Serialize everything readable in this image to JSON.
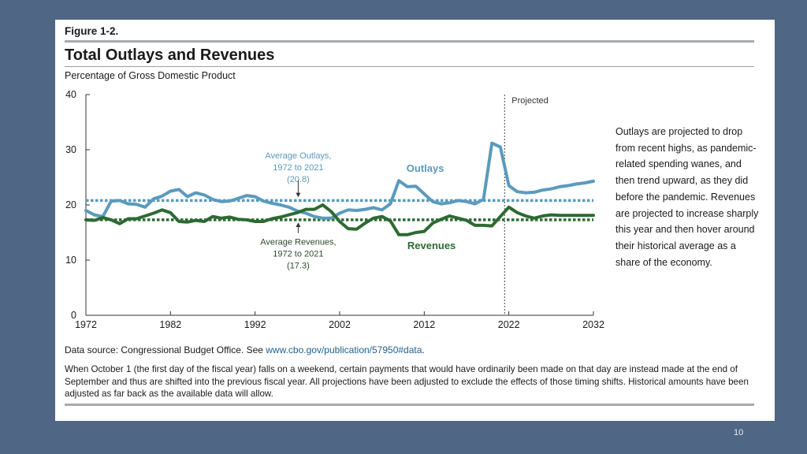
{
  "figure": {
    "number": "Figure 1-2.",
    "title": "Total Outlays and Revenues",
    "subtitle": "Percentage of Gross Domestic Product",
    "note_text": "Outlays are projected to drop from recent highs, as pandemic-related spending wanes, and then trend upward, as they did before the pandemic. Revenues are projected to increase sharply this year and then hover around their historical average as a share of the economy.",
    "source_prefix": "Data source: Congressional Budget Office. See ",
    "source_link": "www.cbo.gov/publication/57950#data",
    "source_suffix": ".",
    "footnote": "When October 1 (the first day of the fiscal year) falls on a weekend, certain payments that would have ordinarily been made on that day are instead made at the end of September and thus are shifted into the previous fiscal year. All projections have been adjusted to exclude the effects of those timing shifts. Historical amounts have been adjusted as far back as the available data will allow."
  },
  "page_number": "10",
  "colors": {
    "outlays": "#5b9abd",
    "revenues": "#2d6a33",
    "axis": "#333333",
    "card": "#ffffff",
    "background": "#4f6685"
  },
  "chart_data": {
    "type": "line",
    "title": "Total Outlays and Revenues",
    "ylabel": "Percentage of Gross Domestic Product",
    "xlabel": "",
    "xlim": [
      1972,
      2032
    ],
    "ylim": [
      0,
      40
    ],
    "x_ticks": [
      1972,
      1982,
      1992,
      2002,
      2012,
      2022,
      2032
    ],
    "y_ticks": [
      0,
      10,
      20,
      30,
      40
    ],
    "grid": false,
    "projected_start": 2021.5,
    "projected_label": "Projected",
    "x": [
      1972,
      1973,
      1974,
      1975,
      1976,
      1977,
      1978,
      1979,
      1980,
      1981,
      1982,
      1983,
      1984,
      1985,
      1986,
      1987,
      1988,
      1989,
      1990,
      1991,
      1992,
      1993,
      1994,
      1995,
      1996,
      1997,
      1998,
      1999,
      2000,
      2001,
      2002,
      2003,
      2004,
      2005,
      2006,
      2007,
      2008,
      2009,
      2010,
      2011,
      2012,
      2013,
      2014,
      2015,
      2016,
      2017,
      2018,
      2019,
      2020,
      2021,
      2022,
      2023,
      2024,
      2025,
      2026,
      2027,
      2028,
      2029,
      2030,
      2031,
      2032
    ],
    "series": [
      {
        "name": "Outlays",
        "label": "Outlays",
        "values": [
          19.0,
          18.2,
          17.9,
          20.7,
          20.8,
          20.2,
          20.1,
          19.6,
          21.1,
          21.6,
          22.5,
          22.8,
          21.5,
          22.2,
          21.8,
          21.0,
          20.6,
          20.7,
          21.2,
          21.7,
          21.5,
          20.7,
          20.3,
          20.0,
          19.6,
          18.9,
          18.5,
          17.9,
          17.6,
          17.6,
          18.5,
          19.1,
          19.0,
          19.2,
          19.5,
          19.1,
          20.2,
          24.4,
          23.3,
          23.4,
          22.0,
          20.6,
          20.2,
          20.4,
          20.8,
          20.6,
          20.2,
          21.0,
          31.2,
          30.5,
          23.5,
          22.4,
          22.2,
          22.3,
          22.7,
          22.9,
          23.3,
          23.5,
          23.8,
          24.0,
          24.3
        ]
      },
      {
        "name": "Revenues",
        "label": "Revenues",
        "values": [
          17.3,
          17.2,
          17.7,
          17.3,
          16.6,
          17.5,
          17.5,
          18.0,
          18.5,
          19.1,
          18.6,
          17.0,
          16.9,
          17.2,
          17.0,
          17.9,
          17.6,
          17.8,
          17.4,
          17.3,
          17.0,
          17.0,
          17.5,
          17.8,
          18.2,
          18.6,
          19.2,
          19.2,
          20.0,
          18.8,
          17.0,
          15.7,
          15.6,
          16.7,
          17.6,
          17.9,
          17.1,
          14.6,
          14.6,
          15.0,
          15.2,
          16.7,
          17.4,
          18.0,
          17.6,
          17.2,
          16.3,
          16.3,
          16.2,
          17.9,
          19.6,
          18.6,
          18.0,
          17.6,
          18.0,
          18.2,
          18.1,
          18.1,
          18.1,
          18.1,
          18.1
        ]
      }
    ],
    "reference_lines": [
      {
        "name": "Average Outlays",
        "value": 20.8,
        "label_lines": [
          "Average Outlays,",
          "1972 to 2021",
          "(20.8)"
        ]
      },
      {
        "name": "Average Revenues",
        "value": 17.3,
        "label_lines": [
          "Average Revenues,",
          "1972 to 2021",
          "(17.3)"
        ]
      }
    ]
  }
}
